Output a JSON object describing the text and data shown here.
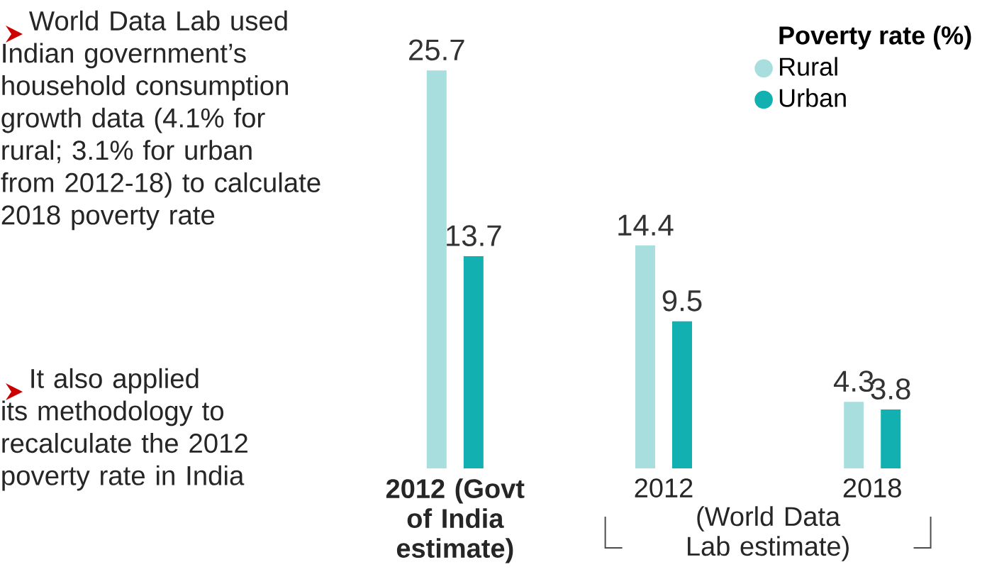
{
  "chart_data": {
    "type": "bar",
    "categories": [
      "2012 (Govt of India estimate)",
      "2012",
      "2018"
    ],
    "series": [
      {
        "name": "Rural",
        "color": "#a8dedd",
        "values": [
          25.7,
          14.4,
          4.3
        ]
      },
      {
        "name": "Urban",
        "color": "#12b0b0",
        "values": [
          13.7,
          9.5,
          3.8
        ]
      }
    ],
    "legend_title": "Poverty rate (%)",
    "legend": "top right",
    "data_labels": true,
    "annotations": [
      "World Data Lab used Indian government’s household consumption growth data (4.1% for rural; 3.1% for urban from 2012-18) to calculate 2018 poverty rate",
      "It also applied its methodology to recalculate the 2012 poverty rate in India",
      "(World Data Lab estimate)"
    ]
  }
}
